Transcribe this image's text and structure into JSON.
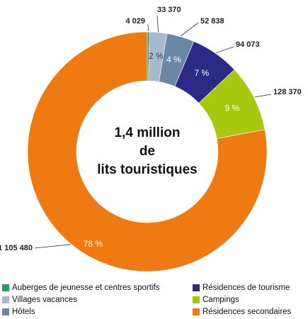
{
  "chart_data": {
    "type": "donut",
    "center_text": [
      "1,4 million",
      "de",
      "lits touristiques"
    ],
    "categories": [
      "Auberges de jeunesse et centres sportifs",
      "Villages vacances",
      "Hôtels",
      "Résidences de tourisme",
      "Campings",
      "Résidences secondaires"
    ],
    "values": [
      4029,
      33370,
      52838,
      94073,
      128370,
      1105480
    ],
    "value_labels": [
      "4 029",
      "33 370",
      "52 838",
      "94 073",
      "128 370",
      "1 105 480"
    ],
    "percentages": [
      null,
      2,
      4,
      7,
      9,
      78
    ],
    "percentage_labels": [
      null,
      "2 %",
      "4 %",
      "7 %",
      "9 %",
      "78 %"
    ],
    "colors": [
      "#1aa35a",
      "#a9b8cc",
      "#6c87a5",
      "#2b2a86",
      "#a6c90e",
      "#f07a12"
    ],
    "legend": "bottom"
  }
}
